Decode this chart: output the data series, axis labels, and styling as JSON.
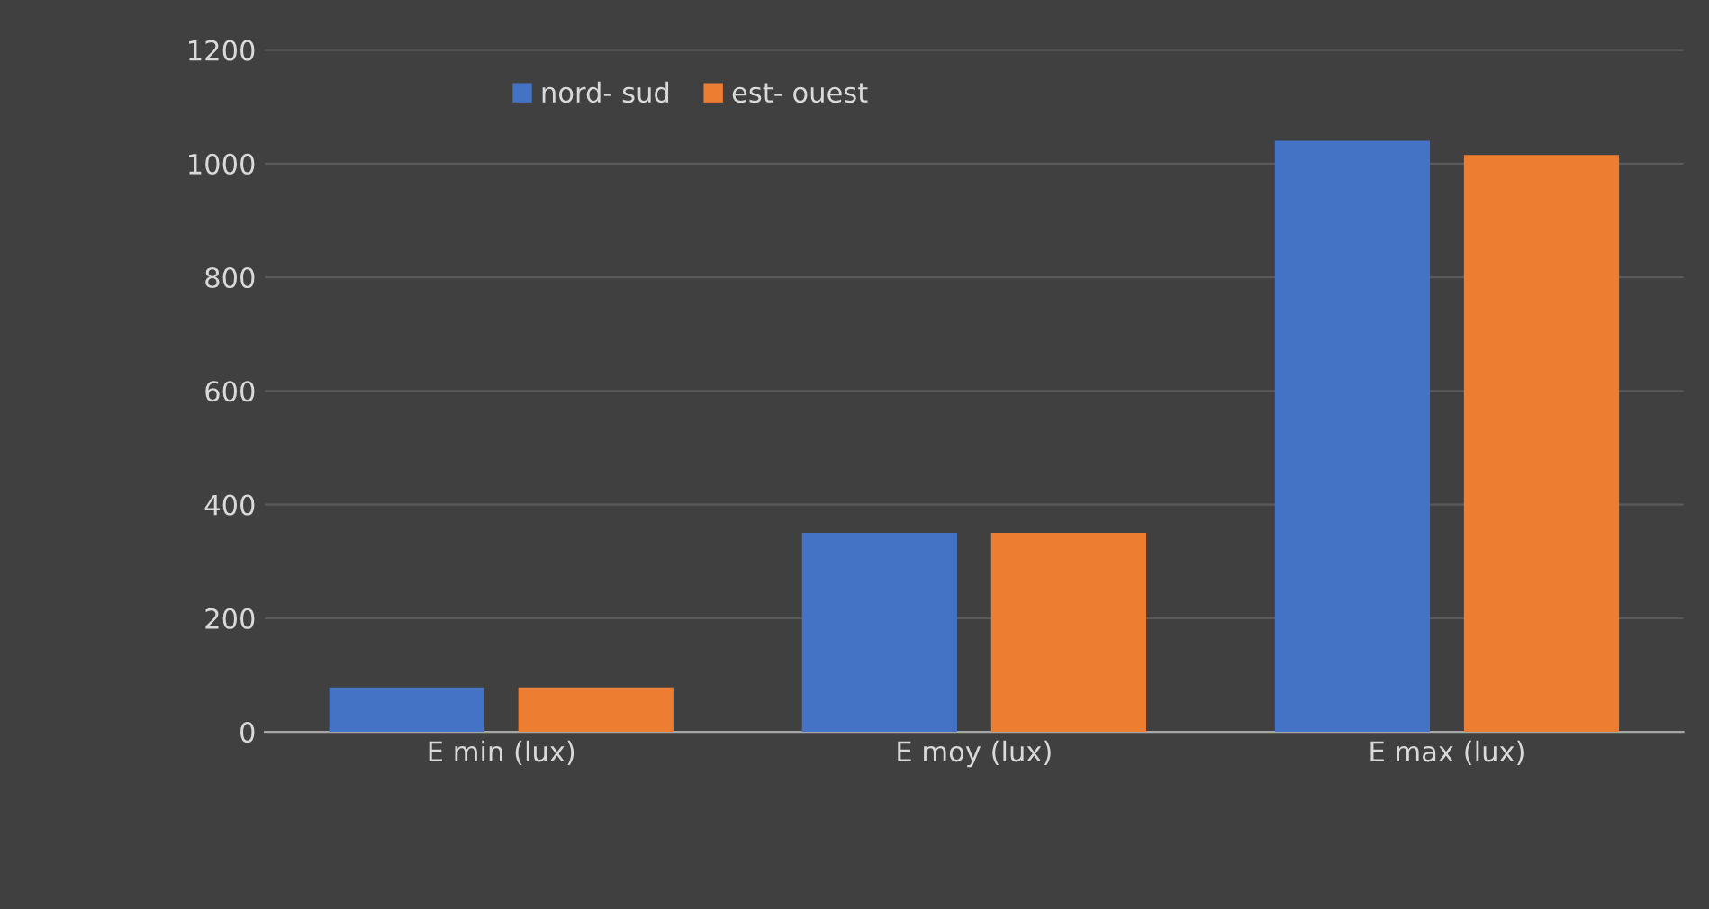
{
  "chart_data": {
    "type": "bar",
    "categories": [
      "E min (lux)",
      "E moy (lux)",
      "E max (lux)"
    ],
    "series": [
      {
        "name": "nord- sud",
        "color": "#4472c4",
        "values": [
          78,
          350,
          1040
        ]
      },
      {
        "name": "est- ouest",
        "color": "#ed7d31",
        "values": [
          78,
          350,
          1015
        ]
      }
    ],
    "ylim": [
      0,
      1200
    ],
    "yticks": [
      0,
      200,
      400,
      600,
      800,
      1000,
      1200
    ],
    "grid": "y",
    "legend": "top"
  }
}
